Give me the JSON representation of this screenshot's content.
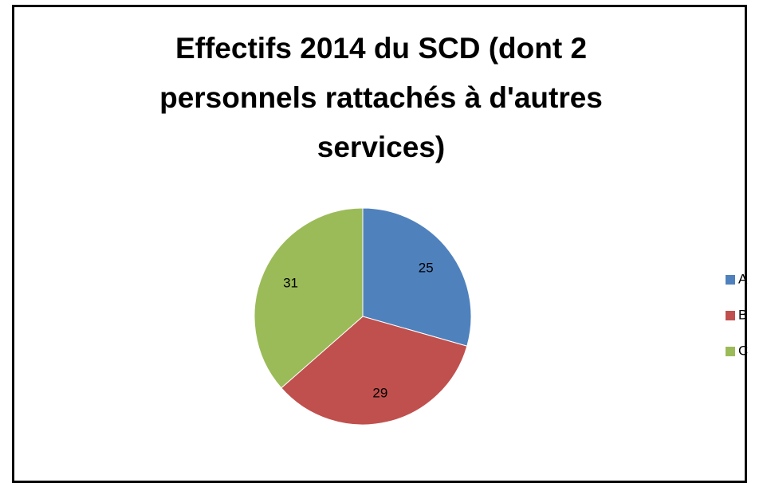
{
  "chart_data": {
    "type": "pie",
    "title": "Effectifs 2014 du SCD (dont 2 personnels rattachés à d'autres services)",
    "categories": [
      "A",
      "B",
      "C"
    ],
    "values": [
      25,
      29,
      31
    ],
    "colors": [
      "#4f81bd",
      "#c0504d",
      "#9bbb59"
    ],
    "legend": "right"
  }
}
